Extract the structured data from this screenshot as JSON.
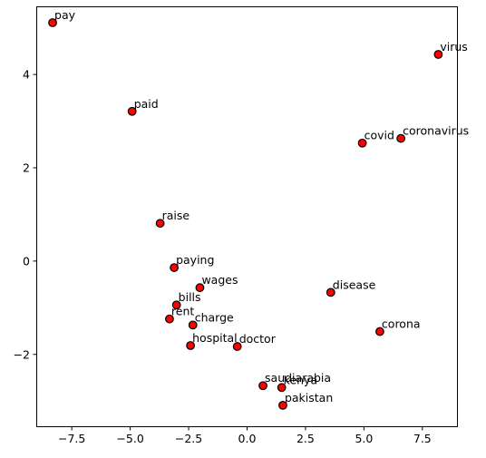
{
  "chart_data": {
    "type": "scatter",
    "title": "",
    "xlabel": "",
    "ylabel": "",
    "xlim": [
      -9.0,
      9.0
    ],
    "ylim": [
      -3.55,
      5.45
    ],
    "xticks": [
      -7.5,
      -5.0,
      -2.5,
      0.0,
      2.5,
      5.0,
      7.5
    ],
    "xtick_labels": [
      "−7.5",
      "−5.0",
      "−2.5",
      "0.0",
      "2.5",
      "5.0",
      "7.5"
    ],
    "yticks": [
      -2,
      0,
      2,
      4
    ],
    "ytick_labels": [
      "−2",
      "0",
      "2",
      "4"
    ],
    "grid": false,
    "marker_color": "#ff0000",
    "marker_edge_color": "#000000",
    "points": [
      {
        "label": "pay",
        "x": -8.3,
        "y": 5.1
      },
      {
        "label": "paid",
        "x": -4.9,
        "y": 3.2
      },
      {
        "label": "raise",
        "x": -3.7,
        "y": 0.8
      },
      {
        "label": "paying",
        "x": -3.1,
        "y": -0.15
      },
      {
        "label": "wages",
        "x": -2.0,
        "y": -0.58
      },
      {
        "label": "bills",
        "x": -3.0,
        "y": -0.95
      },
      {
        "label": "rent",
        "x": -3.3,
        "y": -1.25
      },
      {
        "label": "charge",
        "x": -2.3,
        "y": -1.38
      },
      {
        "label": "hospital",
        "x": -2.4,
        "y": -1.82
      },
      {
        "label": "doctor",
        "x": -0.4,
        "y": -1.84
      },
      {
        "label": "disease",
        "x": 3.6,
        "y": -0.68
      },
      {
        "label": "corona",
        "x": 5.7,
        "y": -1.52
      },
      {
        "label": "covid",
        "x": 4.95,
        "y": 2.52
      },
      {
        "label": "coronavirus",
        "x": 6.6,
        "y": 2.62
      },
      {
        "label": "virus",
        "x": 8.2,
        "y": 4.42
      },
      {
        "label": "saudiarabia",
        "x": 0.7,
        "y": -2.68
      },
      {
        "label": "kenya",
        "x": 1.5,
        "y": -2.72
      },
      {
        "label": "pakistan",
        "x": 1.55,
        "y": -3.1
      }
    ]
  }
}
